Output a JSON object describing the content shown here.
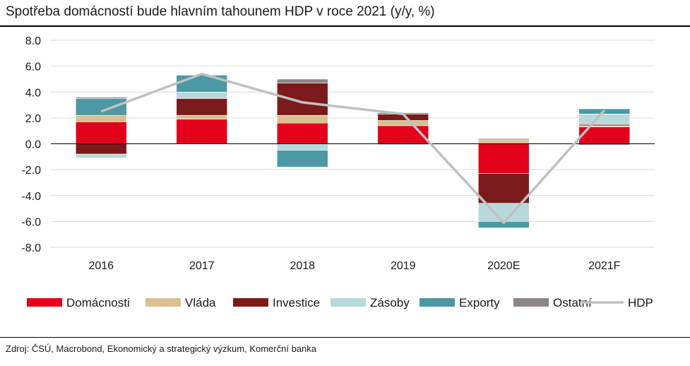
{
  "title": "Spotřeba domácností bude hlavním tahounem HDP v roce 2021 (y/y, %)",
  "source": "Zdroj: ČSÚ, Macrobond, Ekonomický a strategický výzkum, Komerční banka",
  "chart_data": {
    "type": "bar",
    "stacked": true,
    "categories": [
      "2016",
      "2017",
      "2018",
      "2019",
      "2020E",
      "2021F"
    ],
    "ylim": [
      -8,
      8
    ],
    "yticks": [
      "8.0",
      "6.0",
      "4.0",
      "2.0",
      "0.0",
      "-2.0",
      "-4.0",
      "-6.0",
      "-8.0"
    ],
    "ytick_values": [
      8,
      6,
      4,
      2,
      0,
      -2,
      -4,
      -6,
      -8
    ],
    "grid": true,
    "legend_position": "bottom",
    "series": [
      {
        "name": "Domácnosti",
        "color": "#e3001b",
        "values": [
          1.7,
          1.9,
          1.6,
          1.4,
          -2.3,
          1.3
        ]
      },
      {
        "name": "Vláda",
        "color": "#d9c08f",
        "values": [
          0.5,
          0.3,
          0.6,
          0.4,
          0.3,
          0.1
        ]
      },
      {
        "name": "Investice",
        "color": "#7b1a1a",
        "values": [
          -0.8,
          1.3,
          2.5,
          0.5,
          -2.3,
          0.1
        ]
      },
      {
        "name": "Zásoby",
        "color": "#b7d9dc",
        "values": [
          -0.3,
          0.5,
          -0.5,
          -0.1,
          -1.4,
          0.8
        ]
      },
      {
        "name": "Exporty",
        "color": "#4a99a4",
        "values": [
          1.3,
          1.3,
          -1.3,
          0.0,
          -0.5,
          0.4
        ]
      },
      {
        "name": "Ostatní",
        "color": "#8c8786",
        "values": [
          0.1,
          0.0,
          0.3,
          0.1,
          0.1,
          -0.1
        ]
      }
    ],
    "line": {
      "name": "HDP",
      "color": "#c0c0c0",
      "values": [
        2.5,
        5.4,
        3.2,
        2.3,
        -6.1,
        2.6
      ]
    }
  }
}
